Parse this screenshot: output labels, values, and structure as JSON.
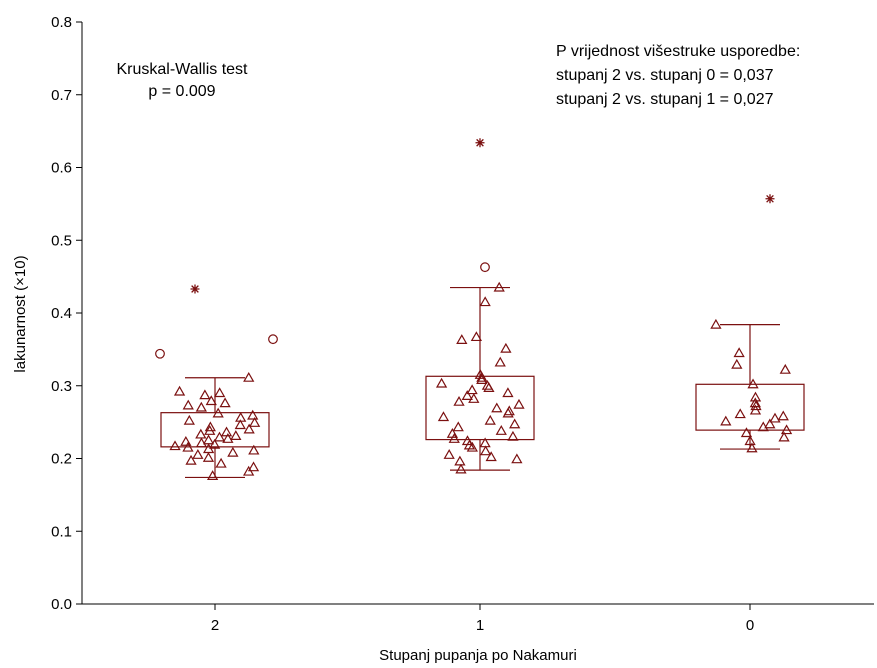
{
  "chart_data": {
    "type": "box",
    "xlabel": "Stupanj pupanja po Nakamuri",
    "ylabel": "lakunarnost (×10)",
    "ylim": [
      0.0,
      0.8
    ],
    "yticks": [
      "0.0",
      "0.1",
      "0.2",
      "0.3",
      "0.4",
      "0.5",
      "0.6",
      "0.7",
      "0.8"
    ],
    "categories": [
      "2",
      "1",
      "0"
    ],
    "mark_color": "#7b1010",
    "annotations": {
      "left": [
        "Kruskal-Wallis test",
        "p = 0.009"
      ],
      "right": [
        "P vrijednost višestruke usporedbe:",
        "stupanj 2 vs. stupanj 0 = 0,037",
        "stupanj 2 vs. stupanj 1 = 0,027"
      ]
    },
    "groups": [
      {
        "category": "2",
        "box": {
          "q1": 0.216,
          "q3": 0.263,
          "whisker_low": 0.174,
          "whisker_high": 0.311
        },
        "outliers": [
          0.344,
          0.364
        ],
        "extremes": [
          0.433
        ],
        "points": [
          0.311,
          0.292,
          0.29,
          0.287,
          0.279,
          0.276,
          0.273,
          0.27,
          0.262,
          0.259,
          0.256,
          0.252,
          0.249,
          0.246,
          0.243,
          0.24,
          0.238,
          0.236,
          0.233,
          0.231,
          0.229,
          0.227,
          0.225,
          0.223,
          0.221,
          0.219,
          0.217,
          0.215,
          0.213,
          0.211,
          0.208,
          0.205,
          0.201,
          0.197,
          0.193,
          0.188,
          0.182,
          0.176
        ]
      },
      {
        "category": "1",
        "box": {
          "q1": 0.226,
          "q3": 0.313,
          "whisker_low": 0.184,
          "whisker_high": 0.435
        },
        "outliers": [
          0.463
        ],
        "extremes": [
          0.634
        ],
        "points": [
          0.435,
          0.415,
          0.367,
          0.363,
          0.351,
          0.332,
          0.315,
          0.311,
          0.308,
          0.303,
          0.3,
          0.297,
          0.294,
          0.29,
          0.286,
          0.282,
          0.278,
          0.274,
          0.269,
          0.265,
          0.262,
          0.257,
          0.252,
          0.247,
          0.243,
          0.238,
          0.234,
          0.23,
          0.227,
          0.224,
          0.221,
          0.218,
          0.215,
          0.21,
          0.205,
          0.202,
          0.199,
          0.196,
          0.185
        ]
      },
      {
        "category": "0",
        "box": {
          "q1": 0.239,
          "q3": 0.302,
          "whisker_low": 0.213,
          "whisker_high": 0.384
        },
        "outliers": [],
        "extremes": [
          0.557
        ],
        "points": [
          0.384,
          0.345,
          0.329,
          0.322,
          0.302,
          0.284,
          0.276,
          0.272,
          0.266,
          0.261,
          0.258,
          0.255,
          0.251,
          0.247,
          0.243,
          0.239,
          0.235,
          0.229,
          0.224,
          0.214
        ]
      }
    ]
  }
}
